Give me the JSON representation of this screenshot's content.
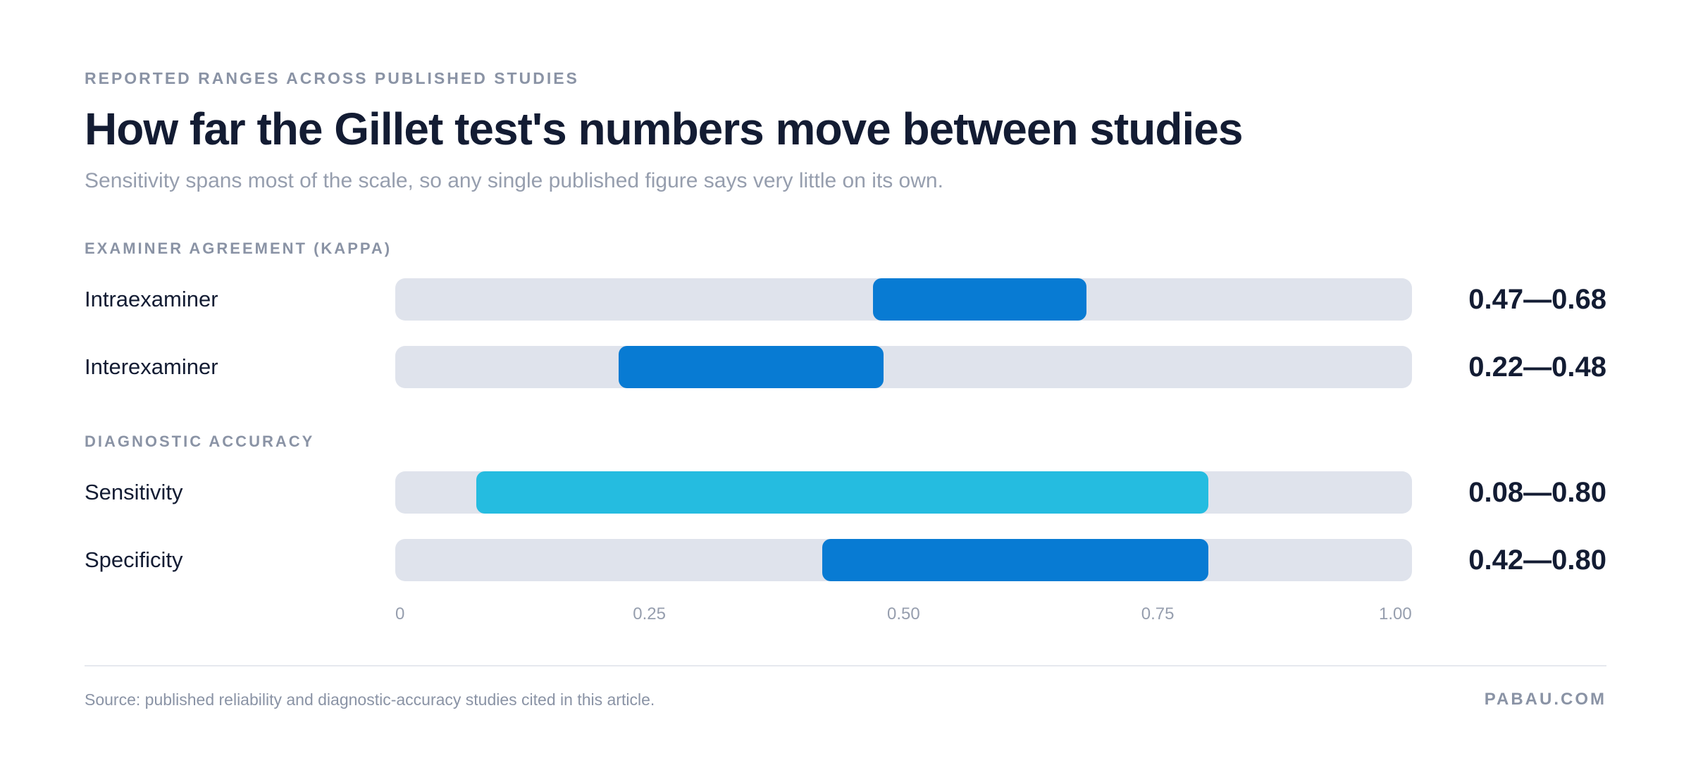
{
  "chart_data": {
    "type": "bar",
    "eyebrow": "REPORTED RANGES ACROSS PUBLISHED STUDIES",
    "title": "How far the Gillet test's numbers move between studies",
    "subtitle": "Sensitivity spans most of the scale, so any single published figure says very little on its own.",
    "xlim": [
      0,
      1
    ],
    "ticks": [
      "0",
      "0.25",
      "0.50",
      "0.75",
      "1.00"
    ],
    "groups": [
      {
        "label": "EXAMINER AGREEMENT (KAPPA)",
        "rows": [
          {
            "name": "Intraexaminer",
            "low": 0.47,
            "high": 0.68,
            "range_label": "0.47—0.68",
            "color": "#087bd3"
          },
          {
            "name": "Interexaminer",
            "low": 0.22,
            "high": 0.48,
            "range_label": "0.22—0.48",
            "color": "#087bd3"
          }
        ]
      },
      {
        "label": "DIAGNOSTIC ACCURACY",
        "rows": [
          {
            "name": "Sensitivity",
            "low": 0.08,
            "high": 0.8,
            "range_label": "0.08—0.80",
            "color": "#25bce0"
          },
          {
            "name": "Specificity",
            "low": 0.42,
            "high": 0.8,
            "range_label": "0.42—0.80",
            "color": "#087bd3"
          }
        ]
      }
    ],
    "track_color": "#dfe3ec"
  },
  "footer": {
    "source": "Source: published reliability and diagnostic-accuracy studies cited in this article.",
    "brand": "PABAU.COM"
  }
}
